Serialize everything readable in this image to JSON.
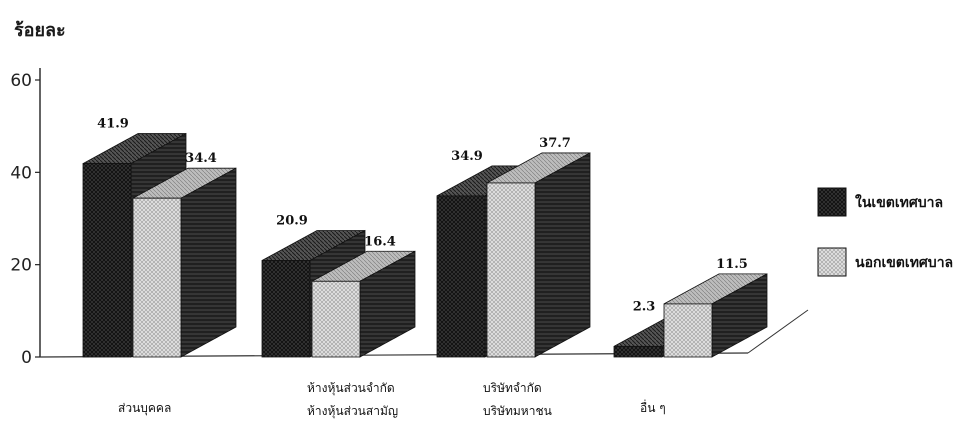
{
  "chart_data": {
    "type": "bar",
    "ylabel": "ร้อยละ",
    "ylim": [
      0,
      60
    ],
    "yticks": [
      0,
      20,
      40,
      60
    ],
    "categories": [
      [
        "ส่วนบุคคล"
      ],
      [
        "ห้างหุ้นส่วนจำกัด",
        "ห้างหุ้นส่วนสามัญ"
      ],
      [
        "บริษัทจำกัด",
        "บริษัทมหาชน"
      ],
      [
        "อื่น ๆ"
      ]
    ],
    "series": [
      {
        "name": "ในเขตเทศบาล",
        "values": [
          41.9,
          20.9,
          34.9,
          2.3
        ],
        "value_labels": [
          "41.9",
          "20.9",
          "34.9",
          "2.3"
        ],
        "color": "#2b2b2b"
      },
      {
        "name": "นอกเขตเทศบาล",
        "values": [
          34.4,
          16.4,
          37.7,
          11.5
        ],
        "value_labels": [
          "34.4",
          "16.4",
          "37.7",
          "11.5"
        ],
        "color": "#d4d4d4"
      }
    ],
    "grid": false,
    "three_d": true,
    "legend_position": "right"
  }
}
